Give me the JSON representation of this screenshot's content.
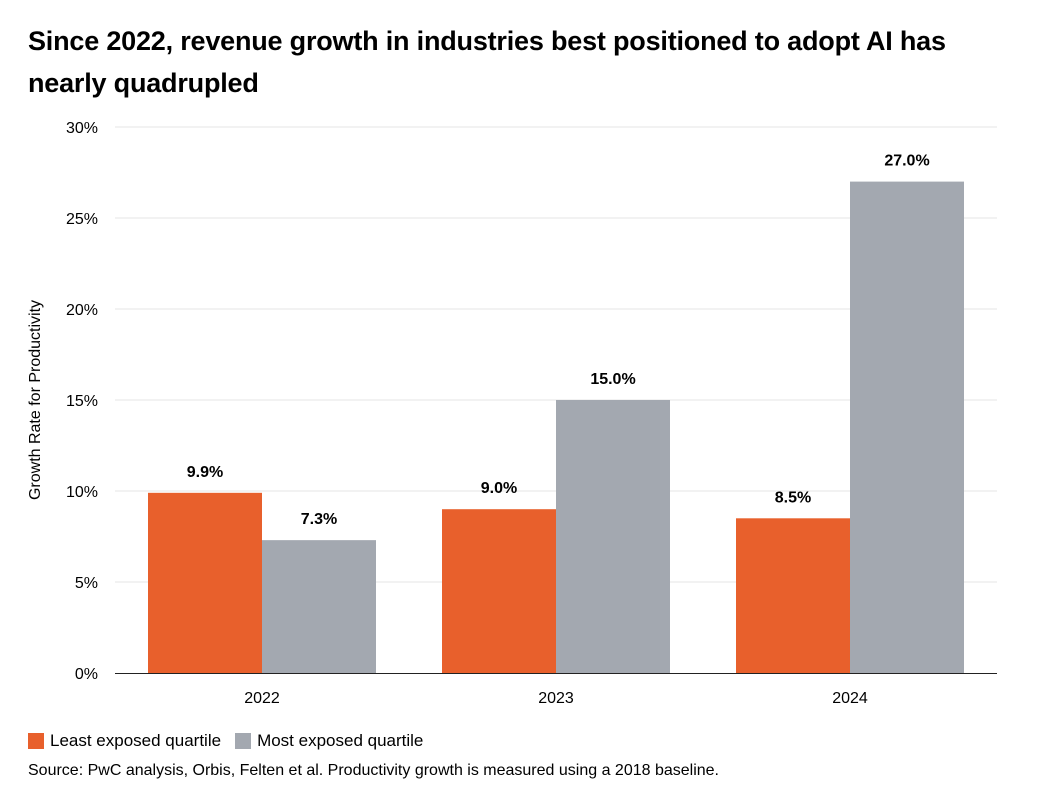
{
  "chart_data": {
    "type": "bar",
    "title": "Since 2022, revenue growth in industries best positioned to adopt AI has nearly quadrupled",
    "ylabel": "Growth Rate for Productivity",
    "xlabel": "",
    "categories": [
      "2022",
      "2023",
      "2024"
    ],
    "series": [
      {
        "name": "Least exposed quartile",
        "values": [
          9.9,
          9.0,
          8.5
        ],
        "labels": [
          "9.9%",
          "9.0%",
          "8.5%"
        ],
        "color": "#e8602c"
      },
      {
        "name": "Most exposed quartile",
        "values": [
          7.3,
          15.0,
          27.0
        ],
        "labels": [
          "7.3%",
          "15.0%",
          "27.0%"
        ],
        "color": "#a3a8b0"
      }
    ],
    "ylim": [
      0,
      30
    ],
    "yticks": [
      0,
      5,
      10,
      15,
      20,
      25,
      30
    ],
    "ytick_labels": [
      "0%",
      "5%",
      "10%",
      "15%",
      "20%",
      "25%",
      "30%"
    ],
    "grid": true,
    "legend_position": "bottom-left"
  },
  "source": "Source: PwC analysis, Orbis, Felten et al. Productivity growth is measured using a 2018 baseline."
}
